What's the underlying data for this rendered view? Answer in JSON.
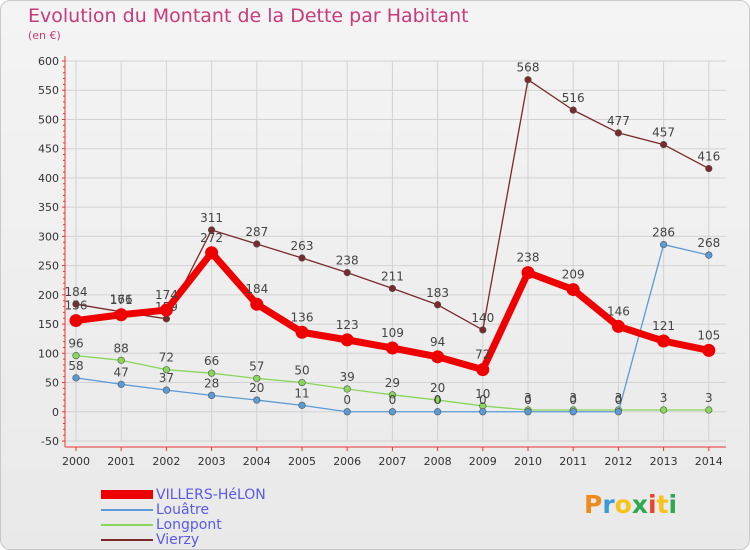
{
  "chart_data": {
    "type": "line",
    "title": "Evolution du Montant de la Dette par Habitant",
    "ylabel": "(en €)",
    "x": [
      2000,
      2001,
      2002,
      2003,
      2004,
      2005,
      2006,
      2007,
      2008,
      2009,
      2010,
      2011,
      2012,
      2013,
      2014
    ],
    "ylim": [
      -50,
      600
    ],
    "yticks": [
      -50,
      0,
      50,
      100,
      150,
      200,
      250,
      300,
      350,
      400,
      450,
      500,
      550,
      600
    ],
    "grid": true,
    "series": [
      {
        "name": "VILLERS-HéLON",
        "color": "#ee0000",
        "values": [
          156,
          166,
          174,
          272,
          184,
          136,
          123,
          109,
          94,
          72,
          238,
          209,
          146,
          121,
          105
        ]
      },
      {
        "name": "Louâtre",
        "color": "#5b9bd5",
        "values": [
          58,
          47,
          37,
          28,
          20,
          11,
          0,
          0,
          0,
          0,
          0,
          0,
          0,
          286,
          268
        ]
      },
      {
        "name": "Longpont",
        "color": "#88d65a",
        "values": [
          96,
          88,
          72,
          66,
          57,
          50,
          39,
          29,
          20,
          10,
          3,
          3,
          3,
          3,
          3
        ]
      },
      {
        "name": "Vierzy",
        "color": "#7a2a2a",
        "values": [
          184,
          171,
          159,
          311,
          287,
          263,
          238,
          211,
          183,
          140,
          568,
          516,
          477,
          457,
          416
        ]
      }
    ]
  },
  "logo": {
    "text": "Proxiti"
  }
}
